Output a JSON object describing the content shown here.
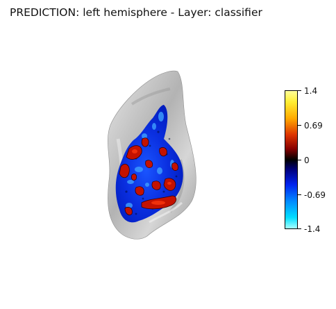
{
  "title": "PREDICTION: left hemisphere - Layer: classifier",
  "colorbar": {
    "ticks": [
      "1.4",
      "0.69",
      "0",
      "-0.69",
      "-1.4"
    ],
    "max": 1.4,
    "min": -1.4
  },
  "colors": {
    "surface": "#c8c8c8",
    "positive": "#cc1100",
    "negative": "#0033ff",
    "zero": "#000000"
  }
}
